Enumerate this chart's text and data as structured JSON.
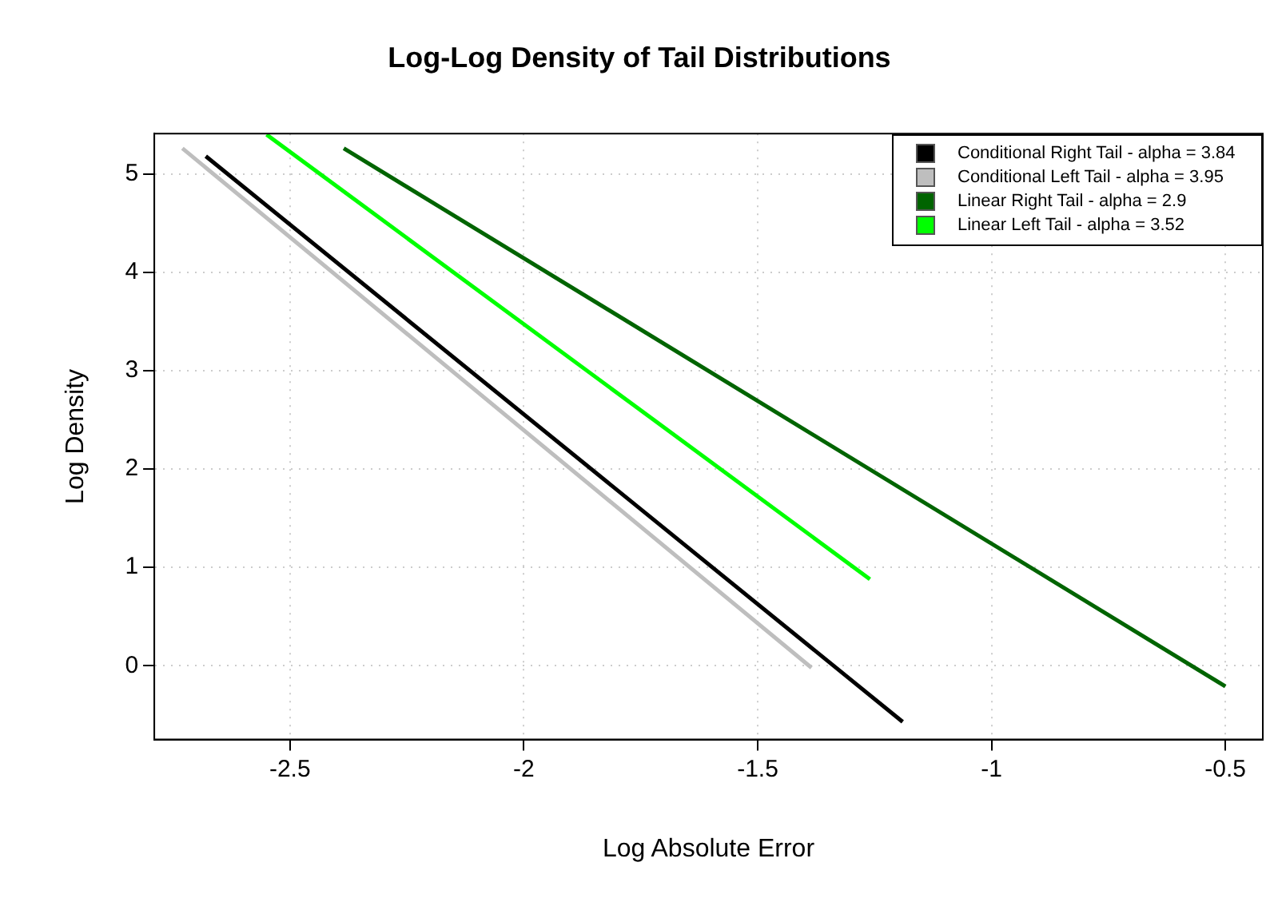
{
  "chart_data": {
    "type": "line",
    "title": "Log-Log Density of Tail Distributions",
    "xlabel": "Log Absolute Error",
    "ylabel": "Log Density",
    "xlim": [
      -2.79,
      -0.42
    ],
    "xticks": [
      -2.5,
      -2.0,
      -1.5,
      -1.0,
      -0.5
    ],
    "ylim": [
      -0.75,
      5.41
    ],
    "yticks": [
      0,
      1,
      2,
      3,
      4,
      5
    ],
    "grid": true,
    "legend": "top right",
    "marker": "none",
    "line_style": "solid",
    "series": [
      {
        "name": "Conditional Right Tail - alpha = 3.84",
        "color": "#000000",
        "x": [
          -2.68,
          -1.19
        ],
        "values": [
          5.18,
          -0.57
        ]
      },
      {
        "name": "Conditional Left Tail - alpha = 3.95",
        "color": "#bebebe",
        "x": [
          -2.73,
          -1.385
        ],
        "values": [
          5.26,
          -0.02
        ]
      },
      {
        "name": "Linear Right Tail - alpha = 2.9",
        "color": "#006400",
        "x": [
          -2.385,
          -0.5
        ],
        "values": [
          5.26,
          -0.21
        ]
      },
      {
        "name": "Linear Left Tail - alpha = 3.52",
        "color": "#00ff00",
        "x": [
          -2.55,
          -1.26
        ],
        "values": [
          5.4,
          0.88
        ]
      }
    ]
  }
}
